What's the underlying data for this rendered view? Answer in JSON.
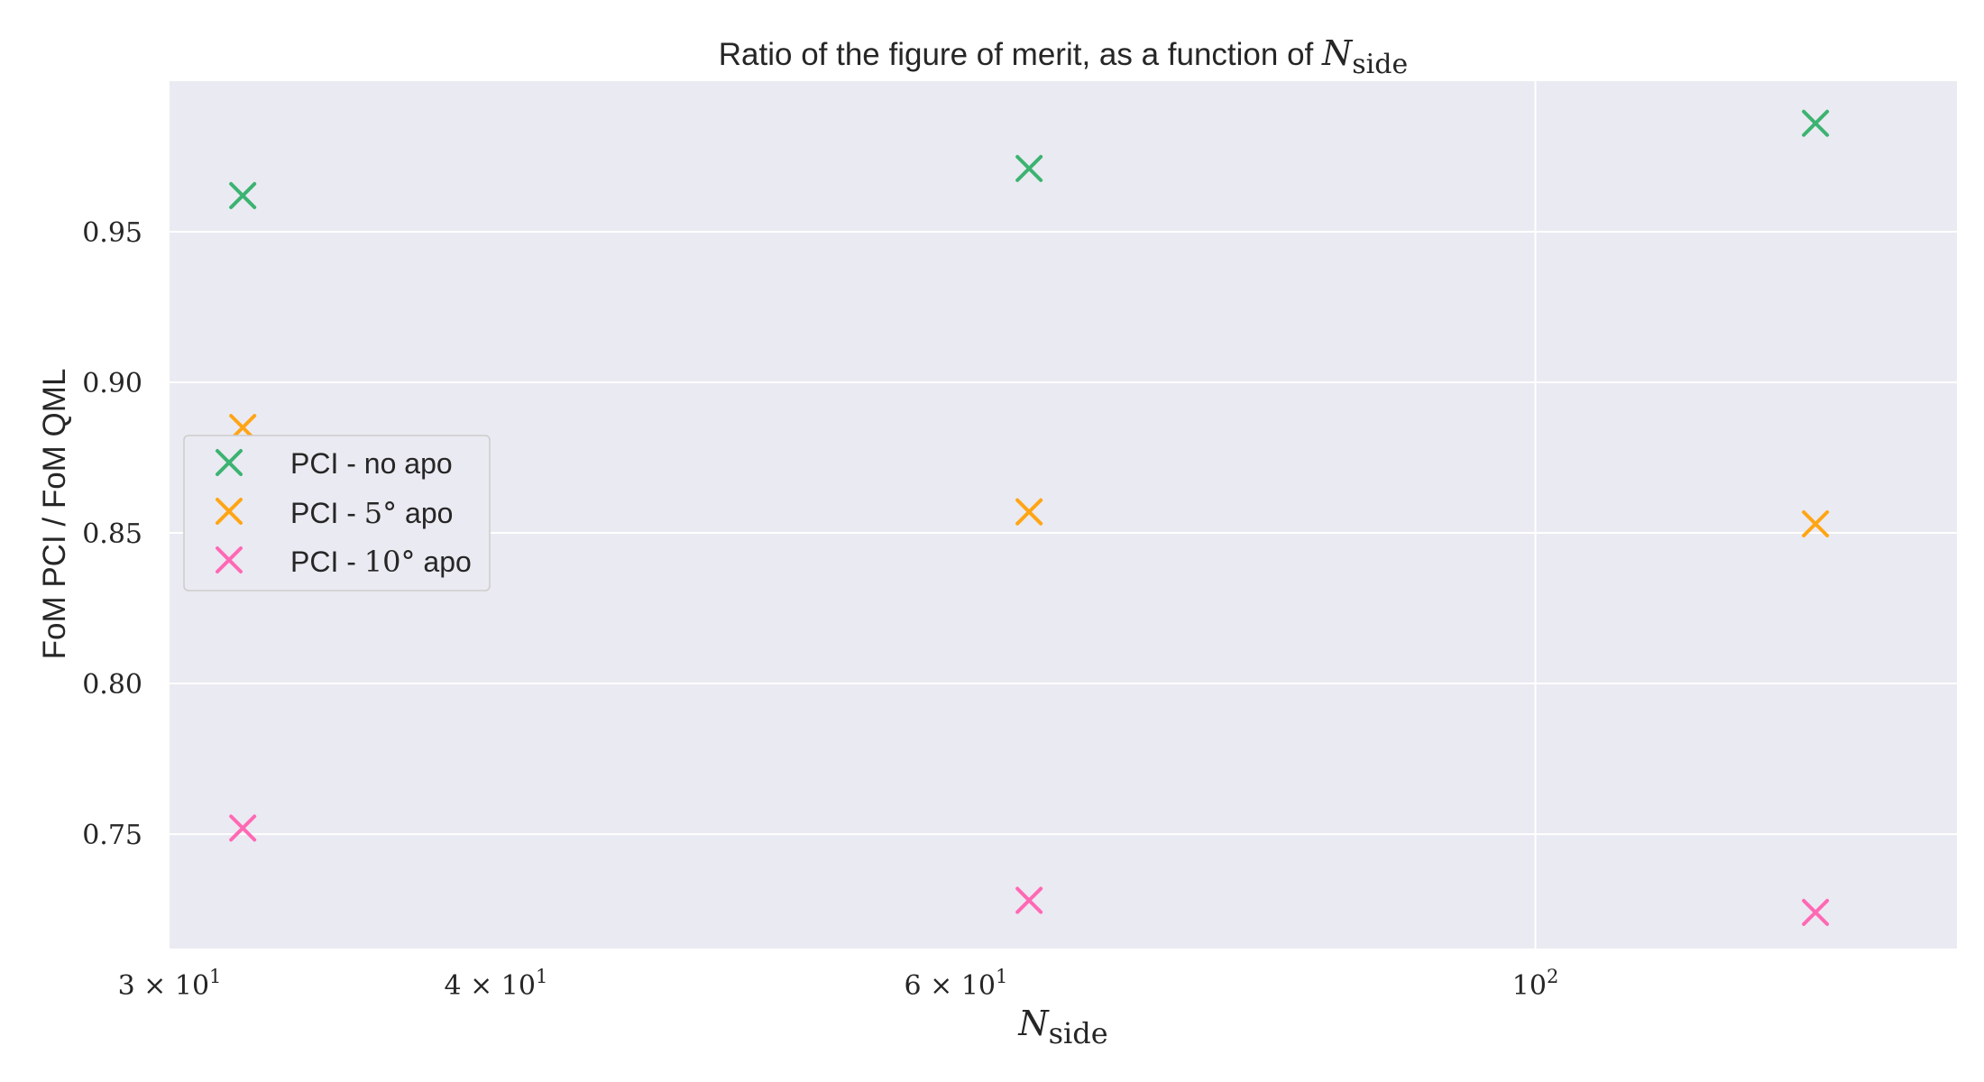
{
  "chart_data": {
    "type": "scatter",
    "title_prefix": "Ratio of the figure of merit, as a function of ",
    "math_symbol": "N",
    "math_subscript": "side",
    "xlabel_symbol": "N",
    "xlabel_subscript": "side",
    "ylabel": "FoM PCI / FoM QML",
    "x_scale": "log",
    "xlim": [
      30,
      145
    ],
    "ylim": [
      0.712,
      1.0
    ],
    "x": [
      32,
      64,
      128
    ],
    "x_ticks": [
      {
        "value": 30,
        "mantissa": "3",
        "times": "×",
        "base": "10",
        "exp": "1"
      },
      {
        "value": 40,
        "mantissa": "4",
        "times": "×",
        "base": "10",
        "exp": "1"
      },
      {
        "value": 60,
        "mantissa": "6",
        "times": "×",
        "base": "10",
        "exp": "1"
      },
      {
        "value": 100,
        "mantissa": "",
        "times": "",
        "base": "10",
        "exp": "2"
      }
    ],
    "x_grid_major": [
      100
    ],
    "y_ticks": [
      {
        "value": 0.75,
        "label": "0.75"
      },
      {
        "value": 0.8,
        "label": "0.80"
      },
      {
        "value": 0.85,
        "label": "0.85"
      },
      {
        "value": 0.9,
        "label": "0.90"
      },
      {
        "value": 0.95,
        "label": "0.95"
      }
    ],
    "grid": true,
    "legend_position": "center-left",
    "marker": "x",
    "series": [
      {
        "name_prefix": "PCI - no apo",
        "name_math": "",
        "name_suffix": "",
        "color": "#3cb371",
        "values": [
          0.962,
          0.971,
          0.986
        ]
      },
      {
        "name_prefix": "PCI - ",
        "name_math": "5°",
        "name_suffix": " apo",
        "color": "#ffa515",
        "values": [
          0.885,
          0.857,
          0.853
        ]
      },
      {
        "name_prefix": "PCI - ",
        "name_math": "10°",
        "name_suffix": " apo",
        "color": "#ff69b4",
        "values": [
          0.752,
          0.728,
          0.724
        ]
      }
    ],
    "colors": {
      "plot_background": "#eaeaf2",
      "grid": "#ffffff",
      "legend_border": "#cccccc",
      "text": "#262626"
    }
  }
}
